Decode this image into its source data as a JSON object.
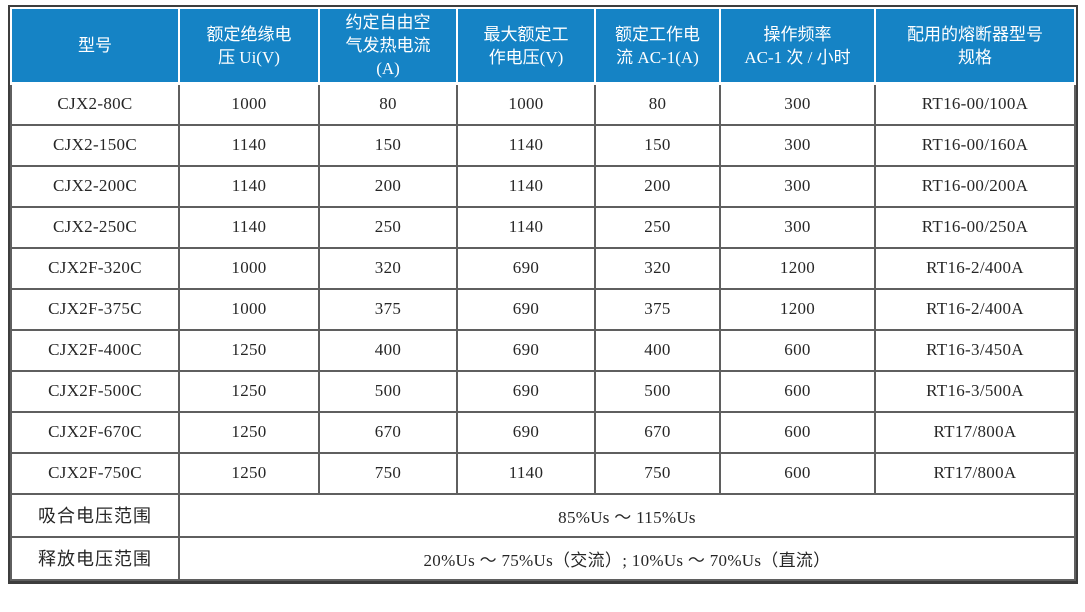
{
  "table": {
    "headers": [
      {
        "lines": [
          "型号"
        ]
      },
      {
        "lines": [
          "额定绝缘电",
          "压 Ui(V)"
        ]
      },
      {
        "lines": [
          "约定自由空",
          "气发热电流",
          "(A)"
        ]
      },
      {
        "lines": [
          "最大额定工",
          "作电压(V)"
        ]
      },
      {
        "lines": [
          "额定工作电",
          "流 AC-1(A)"
        ]
      },
      {
        "lines": [
          "操作频率",
          "AC-1 次 / 小时"
        ]
      },
      {
        "lines": [
          "配用的熔断器型号",
          "规格"
        ]
      }
    ],
    "rows": [
      [
        "CJX2-80C",
        "1000",
        "80",
        "1000",
        "80",
        "300",
        "RT16-00/100A"
      ],
      [
        "CJX2-150C",
        "1140",
        "150",
        "1140",
        "150",
        "300",
        "RT16-00/160A"
      ],
      [
        "CJX2-200C",
        "1140",
        "200",
        "1140",
        "200",
        "300",
        "RT16-00/200A"
      ],
      [
        "CJX2-250C",
        "1140",
        "250",
        "1140",
        "250",
        "300",
        "RT16-00/250A"
      ],
      [
        "CJX2F-320C",
        "1000",
        "320",
        "690",
        "320",
        "1200",
        "RT16-2/400A"
      ],
      [
        "CJX2F-375C",
        "1000",
        "375",
        "690",
        "375",
        "1200",
        "RT16-2/400A"
      ],
      [
        "CJX2F-400C",
        "1250",
        "400",
        "690",
        "400",
        "600",
        "RT16-3/450A"
      ],
      [
        "CJX2F-500C",
        "1250",
        "500",
        "690",
        "500",
        "600",
        "RT16-3/500A"
      ],
      [
        "CJX2F-670C",
        "1250",
        "670",
        "690",
        "670",
        "600",
        "RT17/800A"
      ],
      [
        "CJX2F-750C",
        "1250",
        "750",
        "1140",
        "750",
        "600",
        "RT17/800A"
      ]
    ],
    "footer_rows": [
      {
        "label": "吸合电压范围",
        "value": "85%Us ～ 115%Us"
      },
      {
        "label": "释放电压范围",
        "value": "20%Us ～ 75%Us（交流）; 10%Us ～ 70%Us（直流）"
      }
    ]
  },
  "colors": {
    "header_bg": "#1583c5",
    "header_text": "#ffffff",
    "grid_line": "#5f5f5f",
    "outer_border": "#3d3d3d",
    "body_text": "#262626"
  }
}
